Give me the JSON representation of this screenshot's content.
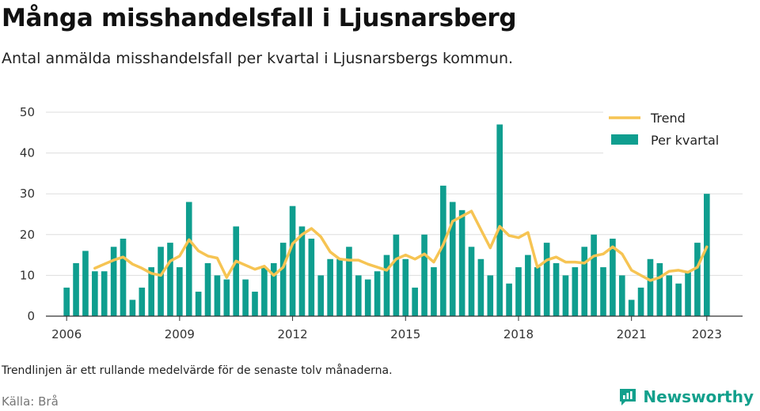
{
  "header": {
    "title": "Många misshandelsfall i Ljusnarsberg",
    "subtitle": "Antal anmälda misshandelsfall per kvartal i Ljusnarsbergs kommun."
  },
  "footer": {
    "note": "Trendlinjen är ett rullande medelvärde för de senaste tolv månaderna.",
    "source": "Källa: Brå",
    "brand": "Newsworthy"
  },
  "colors": {
    "bar": "#0f9e8f",
    "trend": "#f6c453",
    "brand": "#12a08c",
    "grid": "#dddddd"
  },
  "chart_data": {
    "type": "bar",
    "x_axis": {
      "range": [
        2005.45,
        2023.95
      ],
      "ticks": [
        "2006",
        "2009",
        "2012",
        "2015",
        "2018",
        "2021",
        "2023"
      ],
      "tick_values": [
        2006,
        2009,
        2012,
        2015,
        2018,
        2021,
        2023
      ]
    },
    "y_axis": {
      "range": [
        0,
        50
      ],
      "ticks": [
        0,
        10,
        20,
        30,
        40,
        50
      ]
    },
    "grid": true,
    "legend": {
      "placement": "top-right",
      "entries": [
        "Trend",
        "Per kvartal"
      ]
    },
    "series": [
      {
        "name": "Per kvartal",
        "type": "bar",
        "start": 2006.0,
        "step": 0.25,
        "values": [
          7,
          13,
          16,
          11,
          11,
          17,
          19,
          4,
          7,
          12,
          17,
          18,
          12,
          28,
          6,
          13,
          10,
          9,
          22,
          9,
          6,
          12,
          13,
          18,
          27,
          22,
          19,
          10,
          14,
          14,
          17,
          10,
          9,
          11,
          15,
          20,
          14,
          7,
          20,
          12,
          32,
          28,
          26,
          17,
          14,
          10,
          47,
          8,
          12,
          15,
          12,
          18,
          13,
          10,
          12,
          17,
          20,
          12,
          19,
          10,
          4,
          7,
          14,
          13,
          10,
          8,
          11,
          18,
          30
        ]
      },
      {
        "name": "Trend",
        "type": "line",
        "start": 2006.75,
        "step": 0.25,
        "values": [
          11.75,
          12.75,
          13.75,
          14.5,
          12.75,
          11.75,
          10.5,
          10,
          13.5,
          14.75,
          18.75,
          16,
          14.75,
          14.25,
          9.5,
          13.5,
          12.5,
          11.5,
          12.25,
          10,
          12,
          17.75,
          20,
          21.5,
          19.5,
          15.75,
          14,
          13.75,
          13.75,
          12.75,
          12,
          11.25,
          14,
          15,
          14,
          15.25,
          13.25,
          17.5,
          23.25,
          24.5,
          25.75,
          21.25,
          16.75,
          22,
          19.75,
          19.25,
          20.5,
          12,
          13.75,
          14.5,
          13.25,
          13.25,
          13,
          14.75,
          15.25,
          17,
          15.25,
          11.25,
          10,
          8.75,
          9.5,
          11,
          11.25,
          10.75,
          12,
          17
        ]
      }
    ]
  }
}
